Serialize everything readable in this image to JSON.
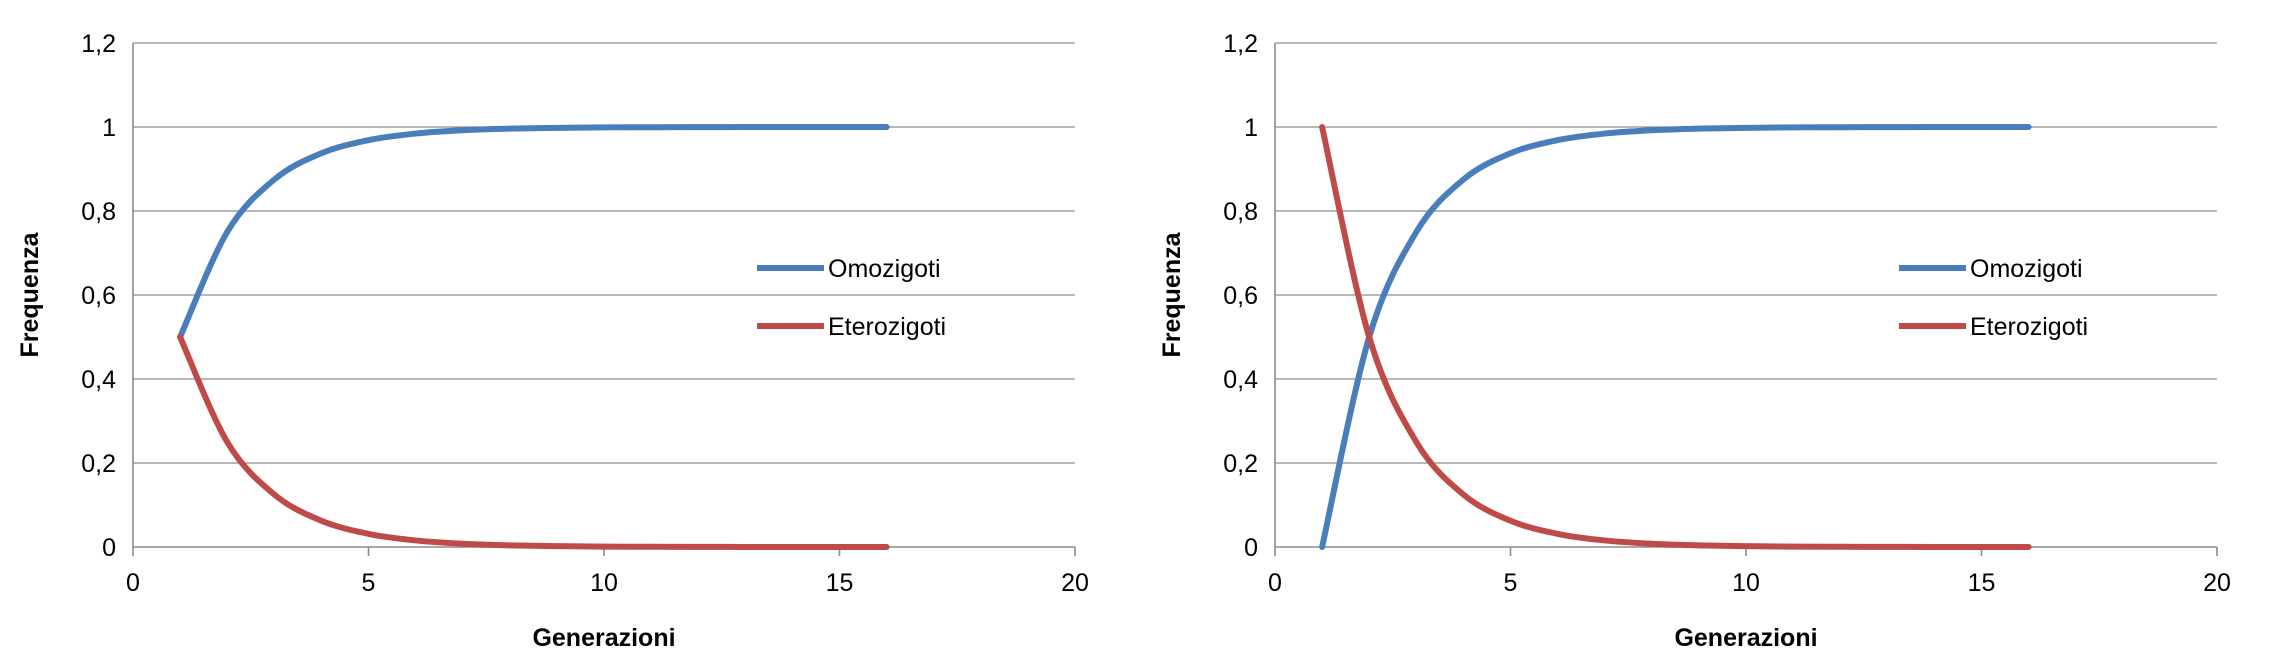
{
  "chart_data": [
    {
      "type": "line",
      "xlabel": "Generazioni",
      "ylabel": "Frequenza",
      "xlim": [
        0,
        20
      ],
      "ylim": [
        0,
        1.2
      ],
      "xticks": [
        "0",
        "5",
        "10",
        "15",
        "20"
      ],
      "yticks": [
        "0",
        "0,2",
        "0,4",
        "0,6",
        "0,8",
        "1",
        "1,2"
      ],
      "grid": "horizontal",
      "legend_position": "right",
      "x": [
        1,
        2,
        3,
        4,
        5,
        6,
        7,
        8,
        9,
        10,
        11,
        12,
        13,
        14,
        15,
        16
      ],
      "series": [
        {
          "name": "Omozigoti",
          "color": "#4A7EBB",
          "values": [
            0.5,
            0.75,
            0.875,
            0.9375,
            0.96875,
            0.984375,
            0.9921875,
            0.99609375,
            0.998046875,
            0.9990234375,
            0.99951171875,
            0.999755859375,
            0.9998779296875,
            0.99993896484375,
            0.999969482421875,
            0.9999847412109375
          ]
        },
        {
          "name": "Eterozigoti",
          "color": "#BE4B48",
          "values": [
            0.5,
            0.25,
            0.125,
            0.0625,
            0.03125,
            0.015625,
            0.0078125,
            0.00390625,
            0.001953125,
            0.0009765625,
            0.00048828125,
            0.000244140625,
            0.0001220703125,
            6.103515625e-05,
            3.0517578125e-05,
            1.52587890625e-05
          ]
        }
      ]
    },
    {
      "type": "line",
      "xlabel": "Generazioni",
      "ylabel": "Frequenza",
      "xlim": [
        0,
        20
      ],
      "ylim": [
        0,
        1.2
      ],
      "xticks": [
        "0",
        "5",
        "10",
        "15",
        "20"
      ],
      "yticks": [
        "0",
        "0,2",
        "0,4",
        "0,6",
        "0,8",
        "1",
        "1,2"
      ],
      "grid": "horizontal",
      "legend_position": "right",
      "x": [
        1,
        2,
        3,
        4,
        5,
        6,
        7,
        8,
        9,
        10,
        11,
        12,
        13,
        14,
        15,
        16
      ],
      "series": [
        {
          "name": "Omozigoti",
          "color": "#4A7EBB",
          "values": [
            0,
            0.5,
            0.75,
            0.875,
            0.9375,
            0.96875,
            0.984375,
            0.9921875,
            0.99609375,
            0.998046875,
            0.9990234375,
            0.99951171875,
            0.999755859375,
            0.9998779296875,
            0.99993896484375,
            0.999969482421875
          ]
        },
        {
          "name": "Eterozigoti",
          "color": "#BE4B48",
          "values": [
            1,
            0.5,
            0.25,
            0.125,
            0.0625,
            0.03125,
            0.015625,
            0.0078125,
            0.00390625,
            0.001953125,
            0.0009765625,
            0.00048828125,
            0.000244140625,
            0.0001220703125,
            6.103515625e-05,
            3.0517578125e-05
          ]
        }
      ]
    }
  ]
}
